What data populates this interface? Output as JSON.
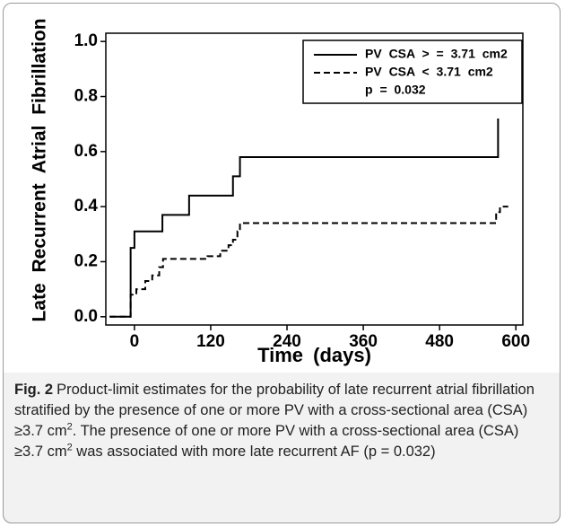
{
  "chart_data": {
    "type": "line",
    "step": true,
    "xlabel": "Time (days)",
    "ylabel": "Late Recurrent Atrial Fibrillation",
    "xlim": [
      -45,
      611
    ],
    "ylim": [
      -0.03,
      1.03
    ],
    "xticks": [
      0,
      120,
      240,
      360,
      480,
      600
    ],
    "yticks": [
      {
        "value": 0,
        "label": "0.0"
      },
      0.2,
      0.4,
      0.6,
      0.8,
      {
        "value": 1,
        "label": "1.0"
      }
    ],
    "series": [
      {
        "name": "PV CSA > = 3.71 cm2",
        "color": "#000000",
        "dash": false,
        "x": [
          -39,
          -6,
          0,
          44,
          86,
          155,
          166,
          572
        ],
        "values": [
          0,
          0.25,
          0.31,
          0.37,
          0.44,
          0.51,
          0.58,
          0.72
        ]
      },
      {
        "name": "PV CSA < 3.71 cm2",
        "color": "#000000",
        "dash": true,
        "x": [
          -39,
          -6,
          3,
          17,
          28,
          39,
          45,
          115,
          135,
          148,
          155,
          162,
          166,
          569,
          575,
          588
        ],
        "values": [
          0,
          0.08,
          0.1,
          0.13,
          0.15,
          0.18,
          0.21,
          0.22,
          0.24,
          0.26,
          0.28,
          0.31,
          0.34,
          0.38,
          0.4,
          0.4
        ]
      }
    ],
    "annotation": "p = 0.032"
  },
  "caption": {
    "label": "Fig. 2",
    "parts": [
      "Product-limit estimates for the probability of late recurrent atrial fibrillation stratified by the presence of one or more PV with a cross-sectional area (CSA) ≥3.7 cm",
      "2",
      ". The presence of one or more PV with a cross-sectional area (CSA) ≥3.7 cm",
      "2",
      " was associated with more late recurrent AF (p = 0.032)"
    ]
  }
}
